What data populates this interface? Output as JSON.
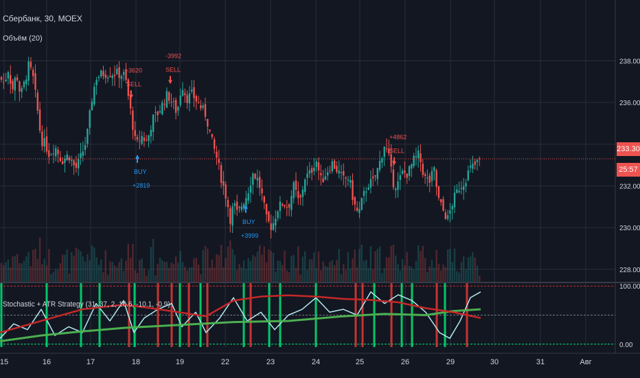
{
  "header": {
    "symbol_line": "Сбербанк, 30, MOEX",
    "volume_label": "Объём (20)",
    "indicator_label": "Stochastic + ATR Strategy (31, 37, 2, 10.6, -10.1, -0.9)"
  },
  "badges": {
    "last_price": "233.30",
    "countdown": "25:57"
  },
  "colors": {
    "background": "#131722",
    "grid": "#2a2e39",
    "up": "#26a69a",
    "down": "#ef5350",
    "text": "#d1d4dc",
    "buy": "#2196f3",
    "sell": "#ef5350",
    "stoch_line": "#b2ebf2",
    "slow_line": "#4caf50",
    "red_line": "#c62828",
    "signal_bar": "#00e676"
  },
  "chart_data": [
    {
      "type": "candlestick",
      "title": "Сбербанк, 30, MOEX",
      "ylim": [
        227.4,
        239.6
      ],
      "y_ticks": [
        "238.00",
        "236.00",
        "234.00",
        "232.00",
        "230.00",
        "228.00"
      ],
      "x_ticks": [
        "15",
        "16",
        "17",
        "18",
        "19",
        "22",
        "23",
        "24",
        "25",
        "26",
        "29",
        "30",
        "31",
        "Авг"
      ],
      "last_price": 233.3,
      "close_path": [
        [
          0,
          237.2
        ],
        [
          6,
          236.9
        ],
        [
          12,
          237.6
        ],
        [
          18,
          236.6
        ],
        [
          24,
          237.4
        ],
        [
          30,
          236.3
        ],
        [
          36,
          237.0
        ],
        [
          42,
          237.8
        ],
        [
          48,
          237.2
        ],
        [
          54,
          235.8
        ],
        [
          60,
          234.2
        ],
        [
          66,
          234.0
        ],
        [
          72,
          233.5
        ],
        [
          80,
          233.9
        ],
        [
          90,
          233.2
        ],
        [
          100,
          233.5
        ],
        [
          110,
          232.8
        ],
        [
          118,
          233.4
        ],
        [
          126,
          234.2
        ],
        [
          134,
          236.2
        ],
        [
          140,
          237.2
        ],
        [
          150,
          237.4
        ],
        [
          170,
          237.4
        ],
        [
          182,
          237.3
        ],
        [
          192,
          235.2
        ],
        [
          198,
          233.9
        ],
        [
          206,
          234.4
        ],
        [
          214,
          234.1
        ],
        [
          222,
          235.2
        ],
        [
          230,
          235.5
        ],
        [
          238,
          236.0
        ],
        [
          244,
          236.4
        ],
        [
          252,
          235.9
        ],
        [
          258,
          235.5
        ],
        [
          262,
          236.4
        ],
        [
          266,
          236.8
        ],
        [
          272,
          236.2
        ],
        [
          280,
          236.4
        ],
        [
          290,
          235.9
        ],
        [
          300,
          235.4
        ],
        [
          308,
          234.2
        ],
        [
          316,
          233.3
        ],
        [
          322,
          232.4
        ],
        [
          330,
          231.4
        ],
        [
          336,
          230.3
        ],
        [
          340,
          231.2
        ],
        [
          346,
          230.6
        ],
        [
          352,
          231.1
        ],
        [
          360,
          231.6
        ],
        [
          368,
          232.6
        ],
        [
          374,
          232.4
        ],
        [
          380,
          231.8
        ],
        [
          388,
          230.4
        ],
        [
          396,
          230.0
        ],
        [
          404,
          230.9
        ],
        [
          412,
          231.2
        ],
        [
          420,
          231.0
        ],
        [
          428,
          232.0
        ],
        [
          436,
          231.1
        ],
        [
          444,
          232.4
        ],
        [
          452,
          232.6
        ],
        [
          460,
          233.3
        ],
        [
          468,
          232.2
        ],
        [
          476,
          232.7
        ],
        [
          484,
          233.1
        ],
        [
          492,
          232.7
        ],
        [
          500,
          232.3
        ],
        [
          508,
          232.4
        ],
        [
          516,
          231.1
        ],
        [
          522,
          230.6
        ],
        [
          528,
          231.4
        ],
        [
          536,
          232.1
        ],
        [
          544,
          232.2
        ],
        [
          552,
          233.0
        ],
        [
          560,
          234.0
        ],
        [
          566,
          233.4
        ],
        [
          572,
          232.2
        ],
        [
          578,
          232.0
        ],
        [
          586,
          232.6
        ],
        [
          594,
          232.6
        ],
        [
          602,
          233.2
        ],
        [
          610,
          233.5
        ],
        [
          618,
          232.4
        ],
        [
          626,
          232.2
        ],
        [
          632,
          232.8
        ],
        [
          638,
          231.4
        ],
        [
          644,
          230.9
        ],
        [
          652,
          230.4
        ],
        [
          660,
          231.3
        ],
        [
          668,
          231.9
        ],
        [
          676,
          232.2
        ],
        [
          684,
          232.8
        ],
        [
          692,
          233.0
        ],
        [
          700,
          233.3
        ]
      ],
      "annotations": [
        {
          "label": "SELL",
          "value": "-3620",
          "x": 191,
          "y": 237.5,
          "side": "sell"
        },
        {
          "label": "SELL",
          "value": "-3992",
          "x": 248,
          "y": 238.2,
          "side": "sell"
        },
        {
          "label": "SELL",
          "value": "+4862",
          "x": 574,
          "y": 234.3,
          "side": "sell"
        },
        {
          "label": "BUY",
          "value": "+2819",
          "x": 200,
          "y": 233.5,
          "side": "buy"
        },
        {
          "label": "BUY",
          "value": "+3999",
          "x": 358,
          "y": 231.1,
          "side": "buy"
        }
      ]
    },
    {
      "type": "histogram",
      "title": "Объём (20)"
    },
    {
      "type": "line",
      "title": "Stochastic + ATR Strategy (31, 37, 2, 10.6, -10.1, -0.9)",
      "ylim": [
        -5,
        105
      ],
      "y_ticks": [
        "100.00",
        "0.00"
      ],
      "levels": [
        0,
        50,
        100
      ],
      "series": [
        {
          "color": "stoch_line",
          "points": [
            [
              0,
              10
            ],
            [
              20,
              35
            ],
            [
              40,
              25
            ],
            [
              60,
              60
            ],
            [
              80,
              15
            ],
            [
              100,
              30
            ],
            [
              120,
              20
            ],
            [
              140,
              70
            ],
            [
              160,
              40
            ],
            [
              180,
              75
            ],
            [
              195,
              20
            ],
            [
              210,
              45
            ],
            [
              230,
              60
            ],
            [
              250,
              70
            ],
            [
              265,
              30
            ],
            [
              285,
              55
            ],
            [
              300,
              20
            ],
            [
              320,
              45
            ],
            [
              340,
              80
            ],
            [
              360,
              40
            ],
            [
              380,
              55
            ],
            [
              400,
              25
            ],
            [
              420,
              50
            ],
            [
              440,
              60
            ],
            [
              460,
              80
            ],
            [
              480,
              55
            ],
            [
              500,
              60
            ],
            [
              520,
              50
            ],
            [
              540,
              90
            ],
            [
              560,
              70
            ],
            [
              580,
              85
            ],
            [
              600,
              75
            ],
            [
              620,
              55
            ],
            [
              640,
              20
            ],
            [
              655,
              10
            ],
            [
              670,
              40
            ],
            [
              685,
              80
            ],
            [
              700,
              90
            ]
          ]
        },
        {
          "color": "slow_line",
          "points": [
            [
              0,
              5
            ],
            [
              60,
              15
            ],
            [
              120,
              22
            ],
            [
              180,
              28
            ],
            [
              260,
              33
            ],
            [
              340,
              38
            ],
            [
              420,
              40
            ],
            [
              500,
              48
            ],
            [
              560,
              52
            ],
            [
              620,
              50
            ],
            [
              660,
              57
            ],
            [
              700,
              60
            ]
          ]
        },
        {
          "color": "red_line",
          "points": [
            [
              0,
              20
            ],
            [
              60,
              40
            ],
            [
              120,
              60
            ],
            [
              180,
              68
            ],
            [
              220,
              62
            ],
            [
              260,
              55
            ],
            [
              300,
              48
            ],
            [
              340,
              75
            ],
            [
              380,
              82
            ],
            [
              420,
              84
            ],
            [
              460,
              82
            ],
            [
              500,
              78
            ],
            [
              540,
              76
            ],
            [
              580,
              72
            ],
            [
              620,
              62
            ],
            [
              660,
              55
            ],
            [
              700,
              45
            ]
          ]
        }
      ],
      "signals": [
        {
          "x": 2,
          "kind": "buy"
        },
        {
          "x": 68,
          "kind": "buy"
        },
        {
          "x": 118,
          "kind": "buy"
        },
        {
          "x": 145,
          "kind": "buy"
        },
        {
          "x": 188,
          "kind": "sell"
        },
        {
          "x": 196,
          "kind": "buy"
        },
        {
          "x": 230,
          "kind": "sell"
        },
        {
          "x": 250,
          "kind": "sell"
        },
        {
          "x": 262,
          "kind": "buy"
        },
        {
          "x": 275,
          "kind": "sell"
        },
        {
          "x": 292,
          "kind": "buy"
        },
        {
          "x": 302,
          "kind": "sell"
        },
        {
          "x": 355,
          "kind": "buy"
        },
        {
          "x": 365,
          "kind": "sell"
        },
        {
          "x": 392,
          "kind": "buy"
        },
        {
          "x": 408,
          "kind": "buy"
        },
        {
          "x": 460,
          "kind": "buy"
        },
        {
          "x": 518,
          "kind": "sell"
        },
        {
          "x": 528,
          "kind": "sell"
        },
        {
          "x": 545,
          "kind": "buy"
        },
        {
          "x": 570,
          "kind": "sell"
        },
        {
          "x": 585,
          "kind": "buy"
        },
        {
          "x": 600,
          "kind": "buy"
        },
        {
          "x": 636,
          "kind": "sell"
        },
        {
          "x": 648,
          "kind": "buy"
        },
        {
          "x": 680,
          "kind": "sell"
        }
      ]
    }
  ]
}
